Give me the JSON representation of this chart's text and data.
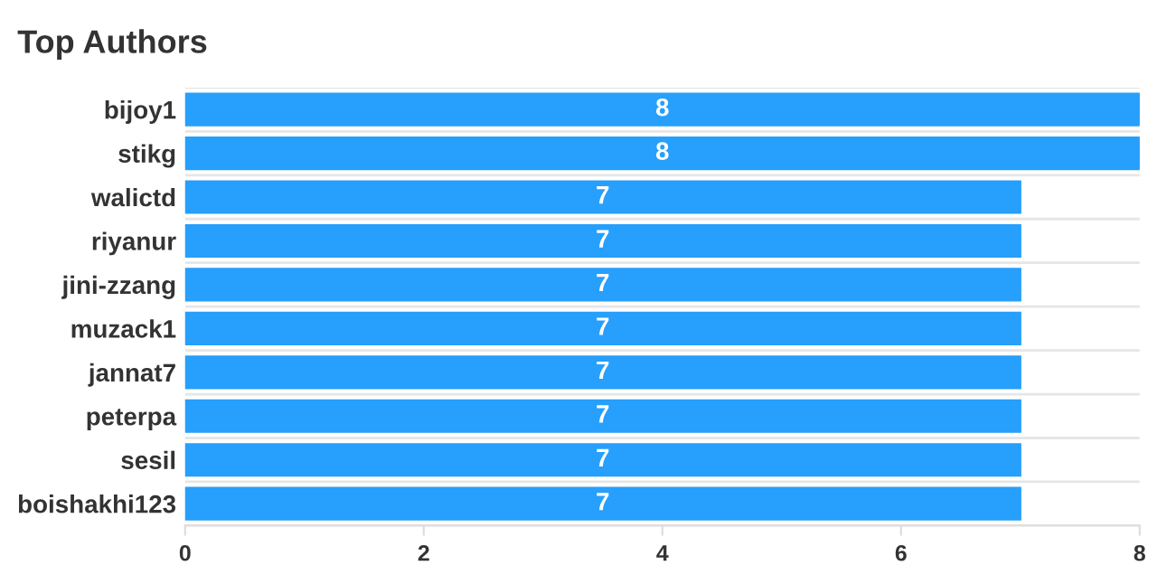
{
  "chart_data": {
    "type": "bar",
    "orientation": "horizontal",
    "title": "Top Authors",
    "categories": [
      "bijoy1",
      "stikg",
      "walictd",
      "riyanur",
      "jini-zzang",
      "muzack1",
      "jannat7",
      "peterpa",
      "sesil",
      "boishakhi123"
    ],
    "values": [
      8,
      8,
      7,
      7,
      7,
      7,
      7,
      7,
      7,
      7
    ],
    "color": "#279ffc",
    "xlim": [
      0,
      8
    ],
    "xticks": [
      0,
      2,
      4,
      6,
      8
    ],
    "grid": "y",
    "data_labels": true,
    "legend": false
  }
}
